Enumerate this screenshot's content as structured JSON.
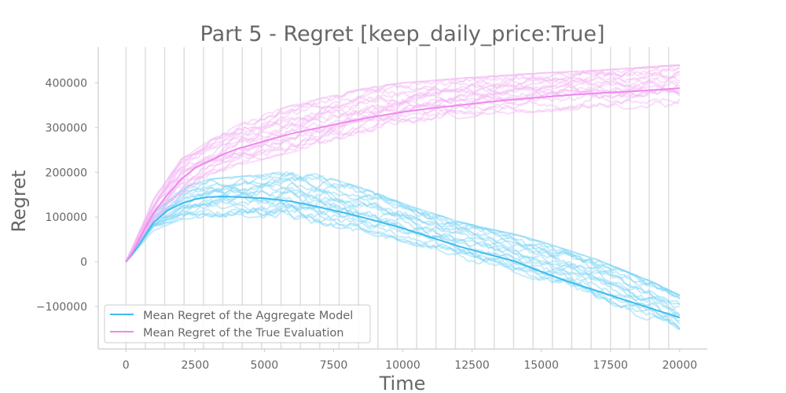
{
  "chart_data": {
    "type": "line",
    "title": "Part 5 - Regret [keep_daily_price:True]",
    "xlabel": "Time",
    "ylabel": "Regret",
    "xlim": [
      -1000,
      21000
    ],
    "ylim": [
      -195000,
      480000
    ],
    "x_ticks": [
      0,
      2500,
      5000,
      7500,
      10000,
      12500,
      15000,
      17500,
      20000
    ],
    "y_ticks": [
      -100000,
      0,
      100000,
      200000,
      300000,
      400000
    ],
    "vertical_gridlines_x": [
      0,
      700,
      1400,
      2100,
      2800,
      3500,
      4200,
      4900,
      5600,
      6300,
      7000,
      7700,
      8400,
      9100,
      9800,
      10500,
      11200,
      11900,
      12600,
      13300,
      14000,
      14700,
      15400,
      16100,
      16800,
      17500,
      18200,
      18900,
      19600
    ],
    "legend_position": "lower left",
    "series": [
      {
        "name": "Mean Regret of the Aggregate Model",
        "color": "#3bbbee",
        "x": [
          0,
          250,
          500,
          750,
          1000,
          1500,
          2000,
          2500,
          3000,
          3500,
          4000,
          5000,
          6000,
          7000,
          8000,
          9000,
          10000,
          11000,
          12000,
          13000,
          14000,
          15000,
          16000,
          17000,
          18000,
          19000,
          20000
        ],
        "values": [
          0,
          18000,
          40000,
          65000,
          88000,
          115000,
          130000,
          140000,
          145000,
          146000,
          145000,
          142000,
          135000,
          122000,
          108000,
          92000,
          75000,
          55000,
          35000,
          18000,
          2000,
          -22000,
          -45000,
          -65000,
          -85000,
          -105000,
          -125000
        ]
      },
      {
        "name": "Mean Regret of the True Evaluation",
        "color": "#ee88ee",
        "x": [
          0,
          250,
          500,
          750,
          1000,
          1500,
          2000,
          2500,
          3000,
          3500,
          4000,
          5000,
          6000,
          7000,
          8000,
          9000,
          10000,
          11000,
          12000,
          13000,
          14000,
          15000,
          16000,
          17000,
          18000,
          19000,
          20000
        ],
        "values": [
          0,
          22000,
          52000,
          82000,
          110000,
          150000,
          185000,
          210000,
          225000,
          240000,
          252000,
          270000,
          287000,
          300000,
          313000,
          325000,
          335000,
          343000,
          350000,
          357000,
          363000,
          368000,
          373000,
          377000,
          380000,
          384000,
          388000
        ]
      }
    ],
    "run_bands": [
      {
        "series": "Mean Regret of the Aggregate Model",
        "color": "#7fd4f6",
        "x": [
          0,
          1000,
          2000,
          3000,
          4000,
          5000,
          6000,
          7000,
          8000,
          9000,
          10000,
          11000,
          12000,
          13000,
          14000,
          15000,
          16000,
          17000,
          18000,
          19000,
          20000
        ],
        "low": [
          0,
          70000,
          95000,
          100000,
          100000,
          98000,
          92000,
          82000,
          72000,
          58000,
          45000,
          25000,
          8000,
          -10000,
          -25000,
          -45000,
          -65000,
          -85000,
          -110000,
          -135000,
          -165000
        ],
        "high": [
          0,
          110000,
          165000,
          185000,
          190000,
          195000,
          205000,
          195000,
          175000,
          155000,
          130000,
          110000,
          90000,
          75000,
          62000,
          45000,
          25000,
          5000,
          -20000,
          -45000,
          -75000
        ]
      },
      {
        "series": "Mean Regret of the True Evaluation",
        "color": "#f3b6f3",
        "x": [
          0,
          1000,
          2000,
          3000,
          4000,
          5000,
          6000,
          7000,
          8000,
          9000,
          10000,
          11000,
          12000,
          13000,
          14000,
          15000,
          16000,
          17000,
          18000,
          19000,
          20000
        ],
        "low": [
          0,
          90000,
          150000,
          190000,
          215000,
          230000,
          245000,
          262000,
          278000,
          292000,
          303000,
          312000,
          320000,
          327000,
          332000,
          336000,
          339000,
          341000,
          342000,
          344000,
          345000
        ],
        "high": [
          0,
          140000,
          230000,
          270000,
          305000,
          330000,
          350000,
          365000,
          380000,
          392000,
          400000,
          405000,
          410000,
          414000,
          418000,
          422000,
          425000,
          428000,
          432000,
          436000,
          440000
        ]
      }
    ]
  }
}
